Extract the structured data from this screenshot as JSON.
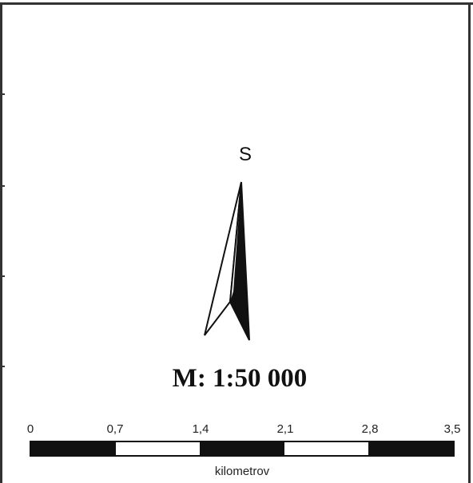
{
  "map": {
    "north_label": "S",
    "scale_ratio": "M: 1:50 000",
    "scale_bar": {
      "labels": [
        "0",
        "0,7",
        "1,4",
        "2,1",
        "2,8",
        "3,5"
      ],
      "segments": [
        "filled",
        "empty",
        "filled",
        "empty",
        "filled"
      ],
      "unit": "kilometrov"
    },
    "north_arrow_icon": "north-arrow-icon",
    "colors": {
      "ink": "#111111",
      "frame": "#333333",
      "background": "#ffffff"
    }
  }
}
